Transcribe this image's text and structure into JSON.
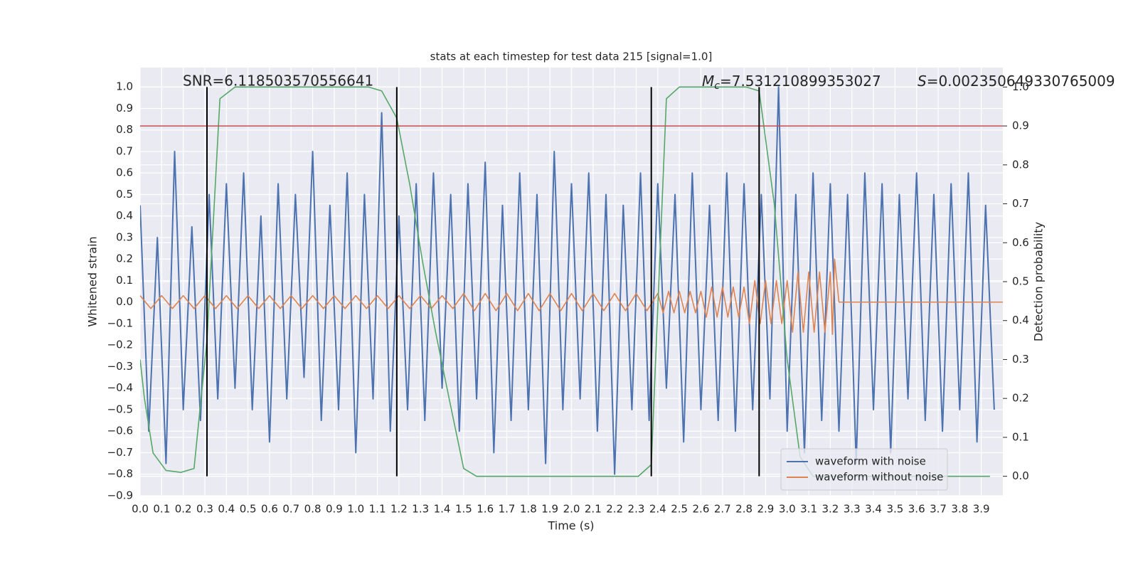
{
  "chart_data": {
    "type": "line",
    "title": "stats at each timestep for test data 215 [signal=1.0]",
    "xlabel": "Time (s)",
    "ylabel": "Whitened strain",
    "y2label": "Detection probability",
    "annotations": {
      "snr": "SNR=6.118503570556641",
      "mc_symbol": "M",
      "mc_subscript": "c",
      "mc_value": "=7.531210899353027",
      "s_symbol": "S",
      "s_value": "=0.002350649330765009"
    },
    "xlim": [
      0,
      4.0
    ],
    "ylim": [
      -0.9,
      1.09
    ],
    "y2lim": [
      -0.05,
      1.05
    ],
    "grid": true,
    "legend": "lower right",
    "xticks": [
      {
        "value": 0,
        "label": "0.0"
      },
      0.1,
      0.2,
      0.3,
      0.4,
      0.5,
      0.6,
      0.7,
      0.8,
      0.9,
      {
        "value": 1,
        "label": "1.0"
      },
      1.1,
      1.2,
      1.3,
      1.4,
      1.5,
      1.6,
      1.7,
      1.8,
      1.9,
      {
        "value": 2,
        "label": "2.0"
      },
      2.1,
      2.2,
      2.3,
      2.4,
      2.5,
      2.6,
      2.7,
      2.8,
      2.9,
      {
        "value": 3,
        "label": "3.0"
      },
      3.1,
      3.2,
      3.3,
      3.4,
      3.5,
      3.6,
      3.7,
      3.8,
      3.9
    ],
    "yticks": [
      {
        "value": -0.9,
        "label": "−0.9"
      },
      {
        "value": -0.8,
        "label": "−0.8"
      },
      {
        "value": -0.7,
        "label": "−0.7"
      },
      {
        "value": -0.6,
        "label": "−0.6"
      },
      {
        "value": -0.5,
        "label": "−0.5"
      },
      {
        "value": -0.4,
        "label": "−0.4"
      },
      {
        "value": -0.3,
        "label": "−0.3"
      },
      {
        "value": -0.2,
        "label": "−0.2"
      },
      {
        "value": -0.1,
        "label": "−0.1"
      },
      {
        "value": 0,
        "label": "0.0"
      },
      0.1,
      0.2,
      0.3,
      0.4,
      0.5,
      0.6,
      0.7,
      0.8,
      0.9,
      {
        "value": 1,
        "label": "1.0"
      }
    ],
    "y2ticks": [
      {
        "value": 0,
        "label": "0.0"
      },
      0.1,
      0.2,
      0.3,
      0.4,
      0.5,
      0.6,
      0.7,
      0.8,
      0.9,
      {
        "value": 1,
        "label": "1.0"
      }
    ],
    "series": [
      {
        "name": "waveform with noise",
        "color": "#4c72b0",
        "x": [
          0,
          0.04,
          0.08,
          0.12,
          0.16,
          0.2,
          0.24,
          0.28,
          0.32,
          0.36,
          0.4,
          0.44,
          0.48,
          0.52,
          0.56,
          0.6,
          0.64,
          0.68,
          0.72,
          0.76,
          0.8,
          0.84,
          0.88,
          0.92,
          0.96,
          1.0,
          1.04,
          1.08,
          1.12,
          1.16,
          1.2,
          1.24,
          1.28,
          1.32,
          1.36,
          1.4,
          1.44,
          1.48,
          1.52,
          1.56,
          1.6,
          1.64,
          1.68,
          1.72,
          1.76,
          1.8,
          1.84,
          1.88,
          1.92,
          1.96,
          2.0,
          2.04,
          2.08,
          2.12,
          2.16,
          2.2,
          2.24,
          2.28,
          2.32,
          2.36,
          2.4,
          2.44,
          2.48,
          2.52,
          2.56,
          2.6,
          2.64,
          2.68,
          2.72,
          2.76,
          2.8,
          2.84,
          2.88,
          2.92,
          2.96,
          3.0,
          3.04,
          3.08,
          3.12,
          3.16,
          3.2,
          3.24,
          3.28,
          3.32,
          3.36,
          3.4,
          3.44,
          3.48,
          3.52,
          3.56,
          3.6,
          3.64,
          3.68,
          3.72,
          3.76,
          3.8,
          3.84,
          3.88,
          3.92,
          3.96
        ],
        "values": [
          0.45,
          -0.6,
          0.3,
          -0.75,
          0.7,
          -0.5,
          0.35,
          -0.55,
          0.5,
          -0.45,
          0.55,
          -0.4,
          0.6,
          -0.5,
          0.4,
          -0.65,
          0.55,
          -0.45,
          0.5,
          -0.35,
          0.7,
          -0.55,
          0.45,
          -0.5,
          0.6,
          -0.7,
          0.5,
          -0.45,
          0.88,
          -0.6,
          0.4,
          -0.5,
          0.55,
          -0.55,
          0.6,
          -0.4,
          0.5,
          -0.6,
          0.55,
          -0.45,
          0.65,
          -0.7,
          0.45,
          -0.55,
          0.6,
          -0.5,
          0.5,
          -0.75,
          0.7,
          -0.5,
          0.55,
          -0.45,
          0.6,
          -0.6,
          0.5,
          -0.8,
          0.45,
          -0.5,
          0.6,
          -0.55,
          0.55,
          -0.4,
          0.5,
          -0.65,
          0.6,
          -0.5,
          0.45,
          -0.55,
          0.6,
          -0.6,
          0.55,
          -0.5,
          0.5,
          -0.45,
          1.0,
          -0.6,
          0.5,
          -0.7,
          0.6,
          -0.55,
          0.55,
          -0.6,
          0.5,
          -0.75,
          0.6,
          -0.5,
          0.55,
          -0.7,
          0.5,
          -0.45,
          0.6,
          -0.55,
          0.5,
          -0.6,
          0.55,
          -0.5,
          0.6,
          -0.65,
          0.45,
          -0.5
        ]
      },
      {
        "name": "waveform without noise",
        "color": "#dd8452",
        "x": [
          0,
          0.05,
          0.1,
          0.15,
          0.2,
          0.25,
          0.3,
          0.35,
          0.4,
          0.45,
          0.5,
          0.55,
          0.6,
          0.65,
          0.7,
          0.75,
          0.8,
          0.85,
          0.9,
          0.95,
          1.0,
          1.05,
          1.1,
          1.15,
          1.2,
          1.25,
          1.3,
          1.35,
          1.4,
          1.45,
          1.5,
          1.55,
          1.6,
          1.65,
          1.7,
          1.75,
          1.8,
          1.85,
          1.9,
          1.95,
          2.0,
          2.05,
          2.1,
          2.15,
          2.2,
          2.25,
          2.3,
          2.35,
          2.4,
          2.425,
          2.45,
          2.475,
          2.5,
          2.525,
          2.55,
          2.575,
          2.6,
          2.625,
          2.65,
          2.675,
          2.7,
          2.725,
          2.75,
          2.775,
          2.8,
          2.825,
          2.85,
          2.875,
          2.9,
          2.925,
          2.95,
          2.975,
          3.0,
          3.025,
          3.05,
          3.075,
          3.1,
          3.125,
          3.15,
          3.175,
          3.2,
          3.21,
          3.22,
          3.24,
          4.0
        ],
        "values": [
          0.03,
          -0.03,
          0.03,
          -0.03,
          0.03,
          -0.03,
          0.03,
          -0.03,
          0.03,
          -0.03,
          0.03,
          -0.03,
          0.03,
          -0.03,
          0.03,
          -0.03,
          0.03,
          -0.03,
          0.03,
          -0.03,
          0.03,
          -0.03,
          0.03,
          -0.03,
          0.03,
          -0.03,
          0.03,
          -0.03,
          0.03,
          -0.03,
          0.04,
          -0.04,
          0.04,
          -0.04,
          0.04,
          -0.04,
          0.04,
          -0.04,
          0.04,
          -0.04,
          0.04,
          -0.04,
          0.04,
          -0.04,
          0.04,
          -0.04,
          0.04,
          -0.04,
          0.04,
          -0.05,
          0.05,
          -0.05,
          0.05,
          -0.05,
          0.05,
          -0.05,
          0.05,
          -0.07,
          0.07,
          -0.07,
          0.07,
          -0.07,
          0.07,
          -0.07,
          0.07,
          -0.1,
          0.1,
          -0.1,
          0.1,
          -0.1,
          0.1,
          -0.1,
          0.1,
          -0.14,
          0.14,
          -0.14,
          0.14,
          -0.14,
          0.14,
          -0.14,
          0.14,
          -0.15,
          0.2,
          0,
          0
        ]
      },
      {
        "color": "#55a868",
        "axis": "y2",
        "x": [
          0,
          0.02,
          0.06,
          0.12,
          0.19,
          0.25,
          0.31,
          0.37,
          0.44,
          1.06,
          1.12,
          1.19,
          1.25,
          1.31,
          1.37,
          1.44,
          1.5,
          1.56,
          2.31,
          2.37,
          2.44,
          2.5,
          2.81,
          2.87,
          2.94,
          3.0,
          3.06,
          3.12,
          3.94
        ],
        "values": [
          0.3,
          0.2,
          0.06,
          0.015,
          0.01,
          0.02,
          0.35,
          0.97,
          1.0,
          1.0,
          0.99,
          0.92,
          0.75,
          0.55,
          0.37,
          0.18,
          0.02,
          0.0,
          0.0,
          0.03,
          0.97,
          1.0,
          1.0,
          0.99,
          0.7,
          0.3,
          0.05,
          0.0,
          0.0
        ]
      }
    ],
    "hline": {
      "y2": 0.9,
      "color": "#c44e52"
    },
    "vlines": {
      "x": [
        0.31,
        1.19,
        2.37,
        2.87
      ],
      "y2range": [
        0,
        1
      ],
      "color": "#000000"
    }
  }
}
